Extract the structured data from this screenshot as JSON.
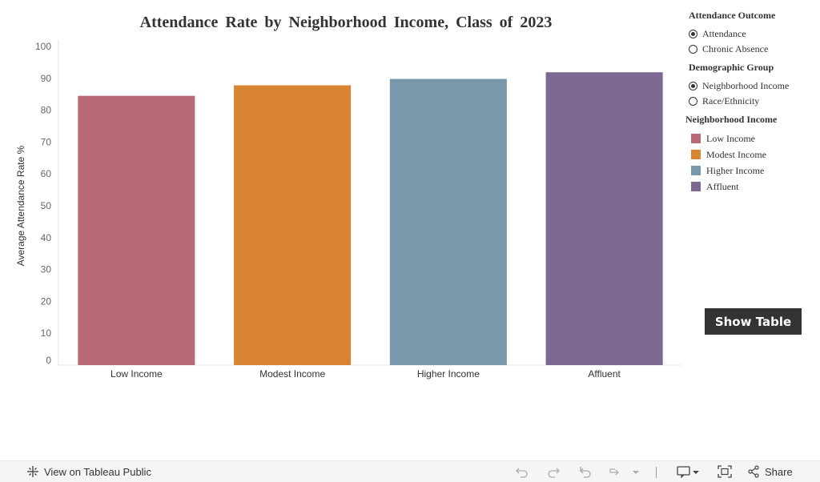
{
  "title": "Attendance Rate by Neighborhood Income, Class of 2023",
  "chart_data": {
    "type": "bar",
    "title": "Attendance Rate by Neighborhood Income, Class of 2023",
    "xlabel": "",
    "ylabel": "Average Attendance Rate %",
    "ylim": [
      0,
      100
    ],
    "yticks": [
      0,
      10,
      20,
      30,
      40,
      50,
      60,
      70,
      80,
      90,
      100
    ],
    "categories": [
      "Low Income",
      "Modest Income",
      "Higher Income",
      "Affluent"
    ],
    "values": [
      84.5,
      87.8,
      89.8,
      91.9
    ],
    "colors": [
      "#b86b77",
      "#d98432",
      "#7b97ab",
      "#7d6891"
    ],
    "grid": false,
    "legend_position": "right"
  },
  "controls": {
    "attendance_outcome": {
      "title": "Attendance Outcome",
      "options": [
        {
          "label": "Attendance",
          "checked": true
        },
        {
          "label": "Chronic Absence",
          "checked": false
        }
      ]
    },
    "demographic_group": {
      "title": "Demographic Group",
      "options": [
        {
          "label": "Neighborhood Income",
          "checked": true
        },
        {
          "label": "Race/Ethnicity",
          "checked": false
        }
      ]
    }
  },
  "legend": {
    "title": "Neighborhood Income",
    "items": [
      {
        "label": "Low Income",
        "color": "#b86b77"
      },
      {
        "label": "Modest Income",
        "color": "#d98432"
      },
      {
        "label": "Higher Income",
        "color": "#7b97ab"
      },
      {
        "label": "Affluent",
        "color": "#7d6891"
      }
    ]
  },
  "show_table_label": "Show Table",
  "footer": {
    "view_label": "View on Tableau Public",
    "share_label": "Share",
    "icons": [
      "undo-icon",
      "redo-icon",
      "revert-icon",
      "refresh-icon",
      "comment-icon",
      "fullscreen-icon",
      "share-icon",
      "tableau-logo-icon"
    ]
  }
}
